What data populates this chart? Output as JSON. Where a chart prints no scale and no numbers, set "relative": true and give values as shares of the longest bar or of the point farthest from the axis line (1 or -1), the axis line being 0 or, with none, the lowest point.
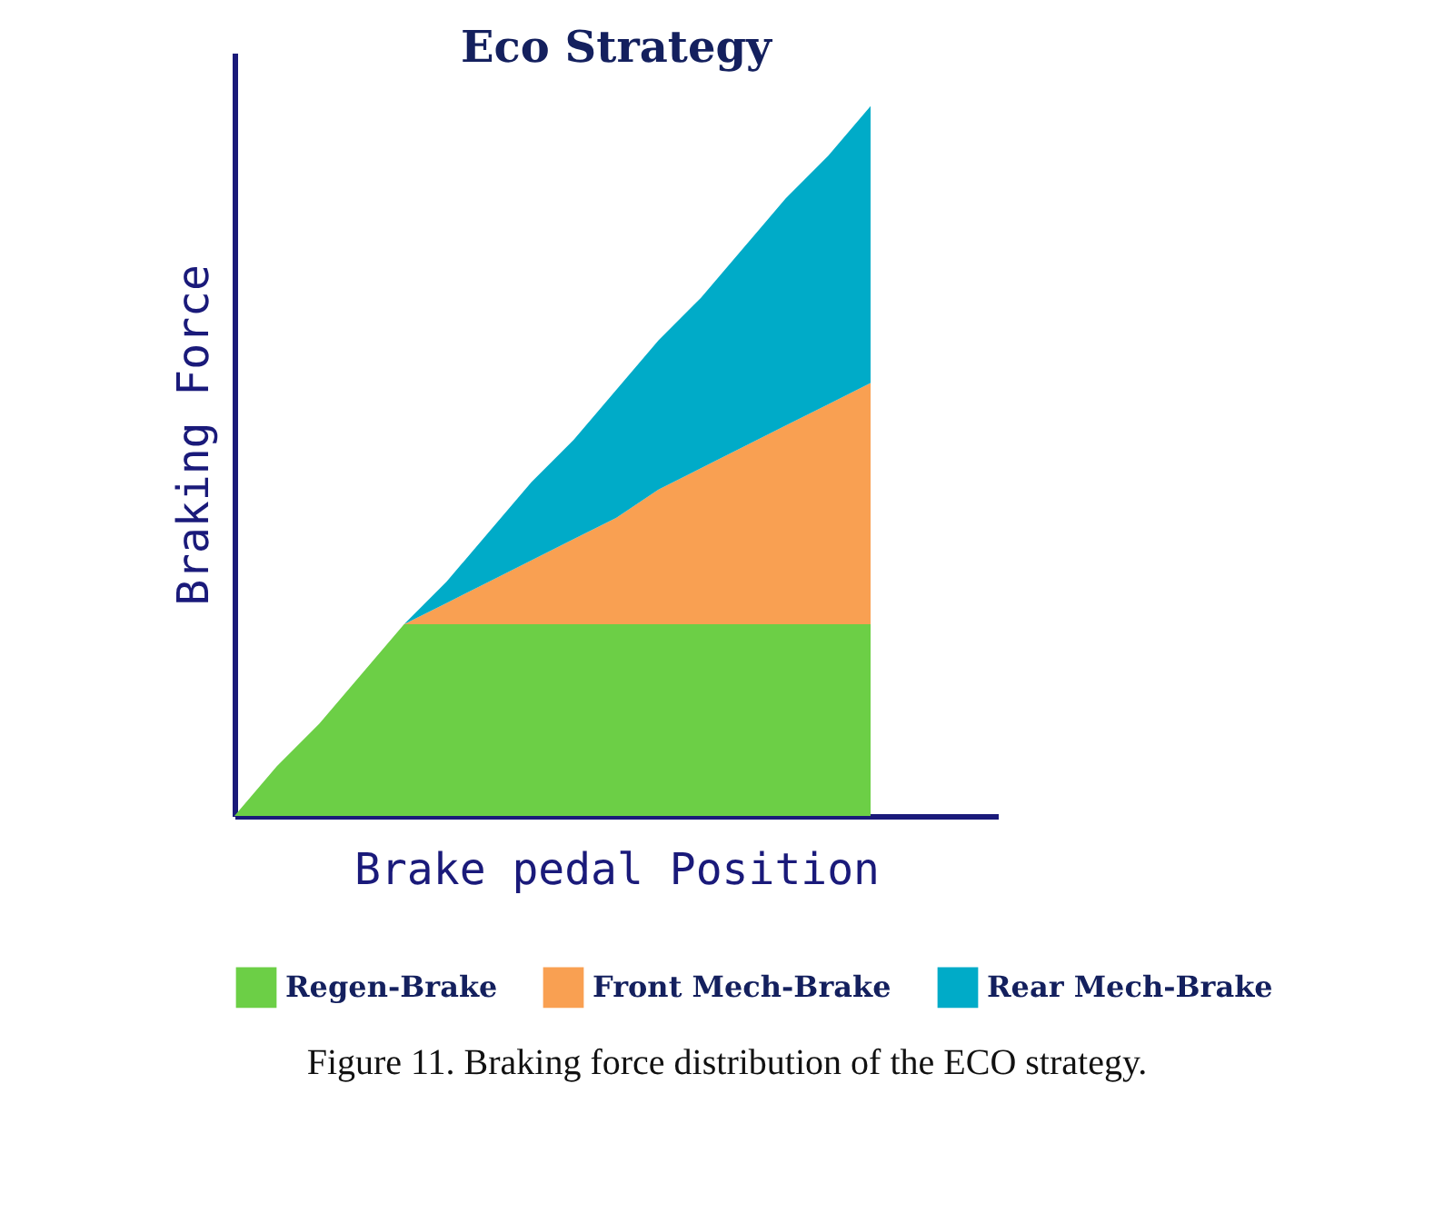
{
  "chart_data": {
    "type": "area",
    "title": "Eco Strategy",
    "xlabel": "Brake pedal Position",
    "ylabel": "Braking Force",
    "relative": true,
    "stacked": true,
    "legend": "bottom",
    "grid": false,
    "categories": [
      null,
      null,
      null,
      null,
      null,
      null,
      null,
      null,
      null,
      null,
      null,
      null,
      null,
      null,
      null,
      null
    ],
    "series": [
      {
        "name": "Regen-Brake",
        "color": "#6ccf46",
        "values": [
          0,
          0.07,
          0.13,
          0.2,
          0.27,
          0.27,
          0.27,
          0.27,
          0.27,
          0.27,
          0.27,
          0.27,
          0.27,
          0.27,
          0.27,
          0.27
        ]
      },
      {
        "name": "Front Mech-Brake",
        "color": "#f9a052",
        "values": [
          0,
          0,
          0,
          0,
          0,
          0.03,
          0.06,
          0.09,
          0.12,
          0.15,
          0.19,
          0.22,
          0.25,
          0.28,
          0.31,
          0.34
        ]
      },
      {
        "name": "Rear Mech-Brake",
        "color": "#00abc8",
        "values": [
          0,
          0,
          0,
          0,
          0,
          0.03,
          0.07,
          0.11,
          0.14,
          0.18,
          0.21,
          0.24,
          0.28,
          0.32,
          0.35,
          0.39
        ]
      }
    ],
    "annotations": [
      "Figure 11. Braking force distribution of the ECO strategy."
    ]
  }
}
